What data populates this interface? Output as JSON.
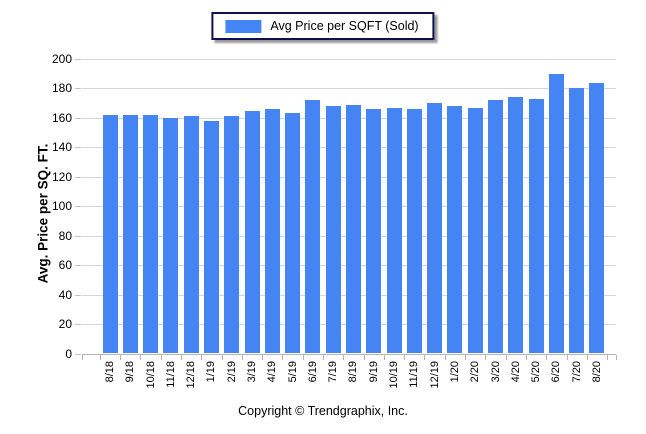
{
  "legend": {
    "label": "Avg Price per SQFT (Sold)"
  },
  "footer": {
    "copyright": "Copyright © Trendgraphix, Inc."
  },
  "colors": {
    "bar": "#4484f3",
    "gridline": "#d5d5d5",
    "baseline": "#b5b5b5",
    "legend_border": "#10104f",
    "text": "#000000"
  },
  "chart_data": {
    "type": "bar",
    "title": "",
    "series_name": "Avg Price per SQFT (Sold)",
    "categories": [
      "8/18",
      "9/18",
      "10/18",
      "11/18",
      "12/18",
      "1/19",
      "2/19",
      "3/19",
      "4/19",
      "5/19",
      "6/19",
      "7/19",
      "8/19",
      "9/19",
      "10/19",
      "11/19",
      "12/19",
      "1/20",
      "2/20",
      "3/20",
      "4/20",
      "5/20",
      "6/20",
      "7/20",
      "8/20"
    ],
    "values": [
      162,
      162,
      162,
      160,
      161,
      158,
      161,
      165,
      166,
      163,
      172,
      168,
      169,
      166,
      167,
      166,
      170,
      168,
      167,
      172,
      174,
      173,
      190,
      180,
      184
    ],
    "xlabel": "",
    "ylabel": "Avg. Price per SQ. FT.",
    "ylim": [
      0,
      200
    ],
    "yticks": [
      0,
      20,
      40,
      60,
      80,
      100,
      120,
      140,
      160,
      180,
      200
    ],
    "grid": true,
    "legend_position": "top-center"
  }
}
